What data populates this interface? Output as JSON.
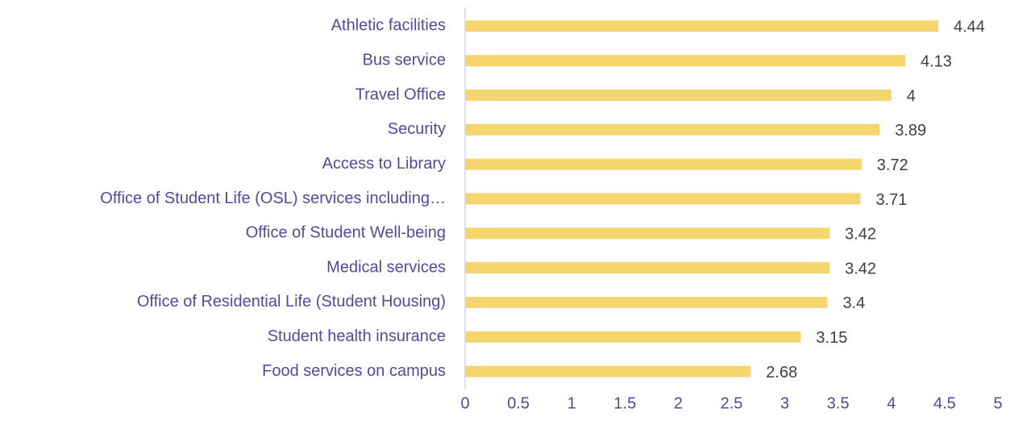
{
  "chart_data": {
    "type": "bar",
    "orientation": "horizontal",
    "categories": [
      "Athletic facilities",
      "Bus service",
      "Travel Office",
      "Security",
      "Access to Library",
      "Office of Student Life (OSL) services including…",
      "Office of Student Well-being",
      "Medical services",
      "Office of Residential Life (Student Housing)",
      "Student health insurance",
      "Food services on campus"
    ],
    "values": [
      4.44,
      4.13,
      4,
      3.89,
      3.72,
      3.71,
      3.42,
      3.42,
      3.4,
      3.15,
      2.68
    ],
    "color": "#f5d56e",
    "xlim": [
      0,
      5
    ],
    "xticks": [
      0,
      0.5,
      1,
      1.5,
      2,
      2.5,
      3,
      3.5,
      4,
      4.5,
      5
    ],
    "grid": false
  }
}
